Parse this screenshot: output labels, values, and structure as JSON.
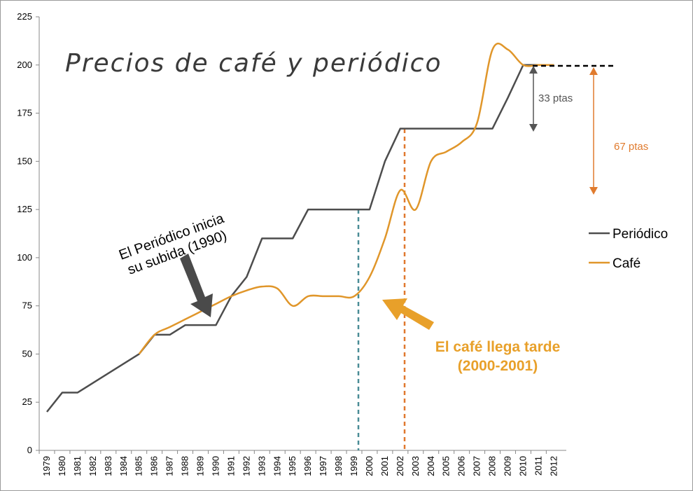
{
  "chart_data": {
    "type": "line",
    "title": "Precios de café y periódico",
    "xlabel": "",
    "ylabel": "",
    "ylim": [
      0,
      225
    ],
    "yticks": [
      0,
      25,
      50,
      75,
      100,
      125,
      150,
      175,
      200,
      225
    ],
    "categories": [
      "1979",
      "1980",
      "1981",
      "1982",
      "1983",
      "1984",
      "1985",
      "1986",
      "1987",
      "1988",
      "1989",
      "1990",
      "1991",
      "1992",
      "1993",
      "1994",
      "1995",
      "1996",
      "1997",
      "1998",
      "1999",
      "2000",
      "2001",
      "2002",
      "2003",
      "2004",
      "2005",
      "2006",
      "2007",
      "2008",
      "2009",
      "2010",
      "2011",
      "2012"
    ],
    "series": [
      {
        "name": "Periódico",
        "color": "#4d4d4d",
        "values": [
          20,
          30,
          30,
          35,
          40,
          45,
          50,
          60,
          60,
          65,
          65,
          65,
          80,
          90,
          110,
          110,
          110,
          125,
          125,
          125,
          125,
          125,
          150,
          167,
          167,
          167,
          167,
          167,
          167,
          167,
          183,
          200,
          200,
          200
        ]
      },
      {
        "name": "Café",
        "color": "#e0962a",
        "values": [
          null,
          null,
          null,
          null,
          null,
          null,
          50,
          60,
          64,
          68,
          72,
          76,
          80,
          83,
          85,
          84,
          75,
          80,
          80,
          80,
          80,
          90,
          110,
          135,
          125,
          150,
          155,
          160,
          170,
          208,
          208,
          200,
          200,
          200
        ]
      }
    ],
    "legend": {
      "position": "right",
      "entries": [
        "Periódico",
        "Café"
      ]
    },
    "grid": false,
    "annotations": {
      "periodico_note": [
        "El Periódico inicia",
        "su subida (1990)"
      ],
      "cafe_note": [
        "El café llega tarde",
        "(2000-2001)"
      ],
      "gap_small": "33 ptas",
      "gap_large": "67 ptas"
    }
  },
  "colors": {
    "periodico": "#4d4d4d",
    "cafe": "#e0962a",
    "teal_marker": "#4a8c96",
    "orange_marker": "#e0782e",
    "cafe_note": "#e8a02a",
    "dark_arrow": "#4a4a4a"
  }
}
